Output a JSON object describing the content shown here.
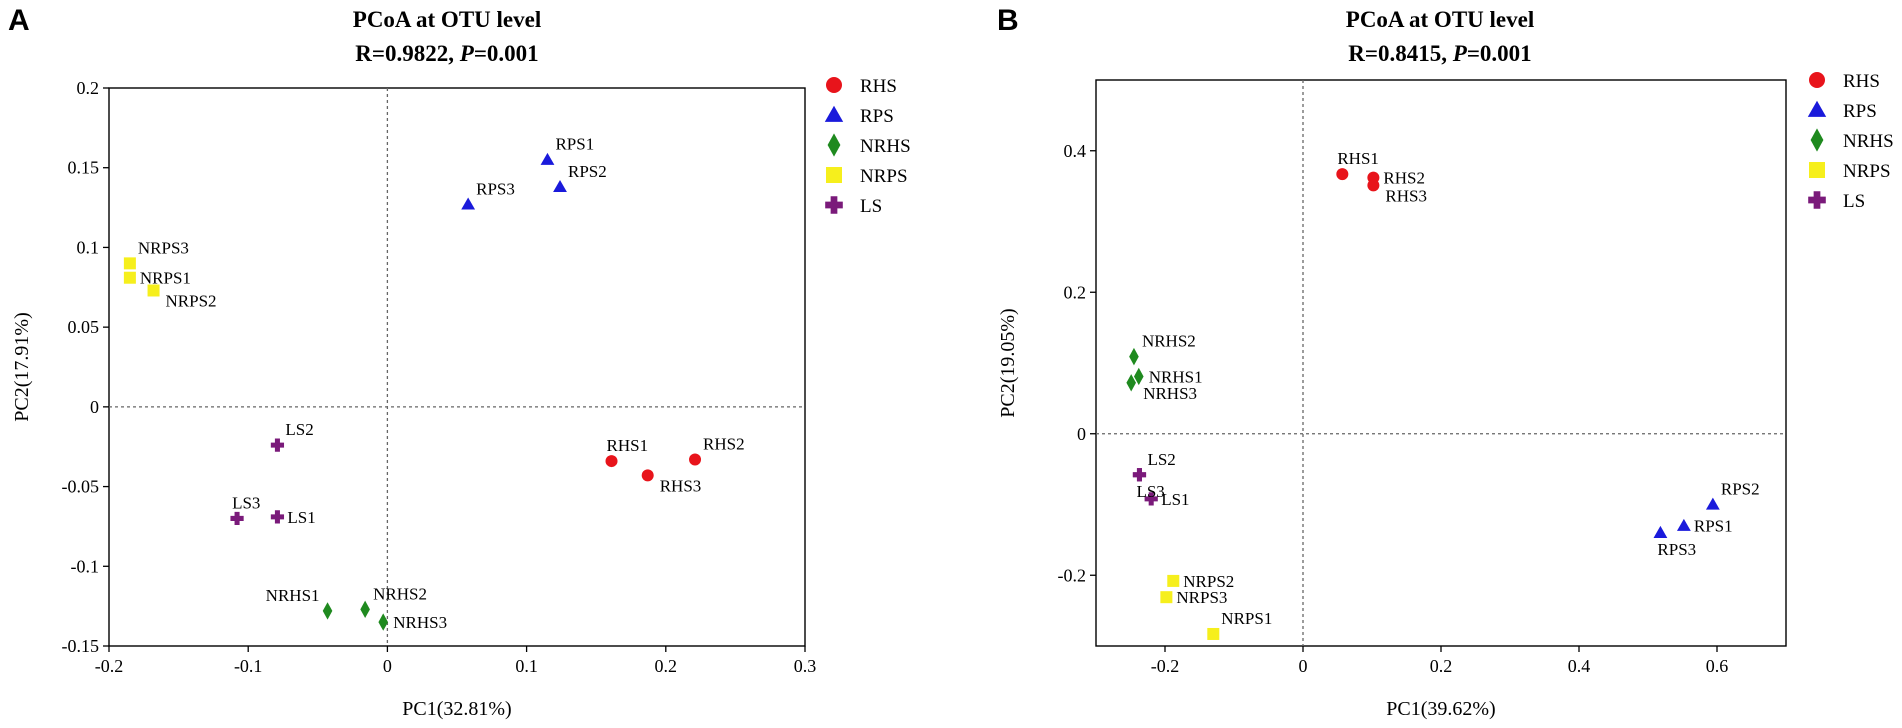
{
  "chart_data": [
    {
      "panel": "A",
      "type": "scatter",
      "title": "PCoA at OTU level",
      "subtitle": {
        "prefix": "R=0.9822, ",
        "p_symbol": "P",
        "p_value": "=0.001"
      },
      "xlabel": "PC1(32.81%)",
      "ylabel": "PC2(17.91%)",
      "xlim": [
        -0.2,
        0.3
      ],
      "ylim": [
        -0.15,
        0.2
      ],
      "xticks": [
        -0.2,
        -0.1,
        0,
        0.1,
        0.2,
        0.3
      ],
      "xtick_labels": [
        "-0.2",
        "-0.1",
        "0",
        "0.1",
        "0.2",
        "0.3"
      ],
      "yticks": [
        -0.15,
        -0.1,
        -0.05,
        0,
        0.05,
        0.1,
        0.15,
        0.2
      ],
      "ytick_labels": [
        "-0.15",
        "-0.1",
        "-0.05",
        "0",
        "0.05",
        "0.1",
        "0.15",
        "0.2"
      ],
      "reference_lines": {
        "x": 0,
        "y": 0
      },
      "legend": [
        "RHS",
        "RPS",
        "NRHS",
        "NRPS",
        "LS"
      ],
      "points": [
        {
          "label": "RHS1",
          "group": "RHS",
          "x": 0.161,
          "y": -0.034,
          "pos": "above"
        },
        {
          "label": "RHS2",
          "group": "RHS",
          "x": 0.221,
          "y": -0.033,
          "pos": "above-right"
        },
        {
          "label": "RHS3",
          "group": "RHS",
          "x": 0.187,
          "y": -0.043,
          "pos": "right-below"
        },
        {
          "label": "RPS1",
          "group": "RPS",
          "x": 0.115,
          "y": 0.155,
          "pos": "above-right"
        },
        {
          "label": "RPS2",
          "group": "RPS",
          "x": 0.124,
          "y": 0.138,
          "pos": "above-right"
        },
        {
          "label": "RPS3",
          "group": "RPS",
          "x": 0.058,
          "y": 0.127,
          "pos": "above-right"
        },
        {
          "label": "NRHS1",
          "group": "NRHS",
          "x": -0.043,
          "y": -0.128,
          "pos": "above-left"
        },
        {
          "label": "NRHS2",
          "group": "NRHS",
          "x": -0.016,
          "y": -0.127,
          "pos": "above-right"
        },
        {
          "label": "NRHS3",
          "group": "NRHS",
          "x": -0.003,
          "y": -0.135,
          "pos": "right"
        },
        {
          "label": "NRPS1",
          "group": "NRPS",
          "x": -0.185,
          "y": 0.081,
          "pos": "right"
        },
        {
          "label": "NRPS2",
          "group": "NRPS",
          "x": -0.168,
          "y": 0.073,
          "pos": "right-below"
        },
        {
          "label": "NRPS3",
          "group": "NRPS",
          "x": -0.185,
          "y": 0.09,
          "pos": "above-right"
        },
        {
          "label": "LS1",
          "group": "LS",
          "x": -0.079,
          "y": -0.069,
          "pos": "right"
        },
        {
          "label": "LS2",
          "group": "LS",
          "x": -0.079,
          "y": -0.024,
          "pos": "above-right"
        },
        {
          "label": "LS3",
          "group": "LS",
          "x": -0.108,
          "y": -0.07,
          "pos": "above"
        }
      ]
    },
    {
      "panel": "B",
      "type": "scatter",
      "title": "PCoA at OTU level",
      "subtitle": {
        "prefix": "R=0.8415, ",
        "p_symbol": "P",
        "p_value": "=0.001"
      },
      "xlabel": "PC1(39.62%)",
      "ylabel": "PC2(19.05%)",
      "xlim": [
        -0.3,
        0.7
      ],
      "ylim": [
        -0.3,
        0.5
      ],
      "xticks": [
        -0.2,
        0,
        0.2,
        0.4,
        0.6
      ],
      "xtick_labels": [
        "-0.2",
        "0",
        "0.2",
        "0.4",
        "0.6"
      ],
      "yticks": [
        -0.2,
        0,
        0.2,
        0.4
      ],
      "ytick_labels": [
        "-0.2",
        "0",
        "0.2",
        "0.4"
      ],
      "reference_lines": {
        "x": 0,
        "y": 0
      },
      "legend": [
        "RHS",
        "RPS",
        "NRHS",
        "NRPS",
        "LS"
      ],
      "points": [
        {
          "label": "RHS1",
          "group": "RHS",
          "x": 0.057,
          "y": 0.367,
          "pos": "above"
        },
        {
          "label": "RHS2",
          "group": "RHS",
          "x": 0.102,
          "y": 0.362,
          "pos": "right"
        },
        {
          "label": "RHS3",
          "group": "RHS",
          "x": 0.102,
          "y": 0.351,
          "pos": "right-below"
        },
        {
          "label": "RPS1",
          "group": "RPS",
          "x": 0.552,
          "y": -0.13,
          "pos": "right"
        },
        {
          "label": "RPS2",
          "group": "RPS",
          "x": 0.594,
          "y": -0.1,
          "pos": "above-right"
        },
        {
          "label": "RPS3",
          "group": "RPS",
          "x": 0.518,
          "y": -0.14,
          "pos": "below-right"
        },
        {
          "label": "NRHS1",
          "group": "NRHS",
          "x": -0.238,
          "y": 0.081,
          "pos": "right"
        },
        {
          "label": "NRHS2",
          "group": "NRHS",
          "x": -0.245,
          "y": 0.109,
          "pos": "above-right"
        },
        {
          "label": "NRHS3",
          "group": "NRHS",
          "x": -0.249,
          "y": 0.072,
          "pos": "right-below"
        },
        {
          "label": "NRPS1",
          "group": "NRPS",
          "x": -0.13,
          "y": -0.283,
          "pos": "above-right"
        },
        {
          "label": "NRPS2",
          "group": "NRPS",
          "x": -0.188,
          "y": -0.208,
          "pos": "right"
        },
        {
          "label": "NRPS3",
          "group": "NRPS",
          "x": -0.198,
          "y": -0.231,
          "pos": "right"
        },
        {
          "label": "LS1",
          "group": "LS",
          "x": -0.22,
          "y": -0.092,
          "pos": "right"
        },
        {
          "label": "LS2",
          "group": "LS",
          "x": -0.237,
          "y": -0.058,
          "pos": "above-right"
        },
        {
          "label": "LS3",
          "group": "LS",
          "x": -0.237,
          "y": -0.058,
          "pos": "below-right"
        }
      ]
    }
  ],
  "group_styles": {
    "RHS": {
      "shape": "circle",
      "color": "#e8141b"
    },
    "RPS": {
      "shape": "triangle",
      "color": "#1a1adb"
    },
    "NRHS": {
      "shape": "diamond",
      "color": "#1f8a1f"
    },
    "NRPS": {
      "shape": "square",
      "color": "#f6ef1c"
    },
    "LS": {
      "shape": "cross",
      "color": "#7a1a7a"
    }
  }
}
